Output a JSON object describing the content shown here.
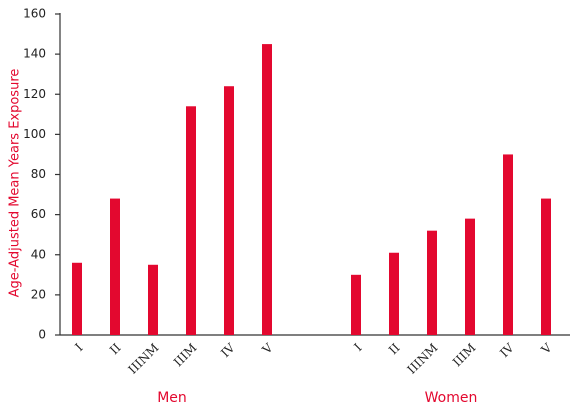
{
  "chart_data": {
    "type": "bar",
    "y_label": "Age-Adjusted Mean Years Exposure",
    "categories": [
      "I",
      "II",
      "IIINM",
      "IIIM",
      "IV",
      "V"
    ],
    "series": [
      {
        "name": "Men",
        "color": "#e3082f",
        "values": [
          36,
          68,
          35,
          114,
          124,
          145
        ]
      },
      {
        "name": "Women",
        "color": "#e3082f",
        "values": [
          30,
          41,
          52,
          58,
          90,
          68
        ]
      }
    ],
    "ylim": [
      0,
      160
    ],
    "yticks": [
      0,
      20,
      40,
      60,
      80,
      100,
      120,
      140,
      160
    ],
    "grid": false
  }
}
